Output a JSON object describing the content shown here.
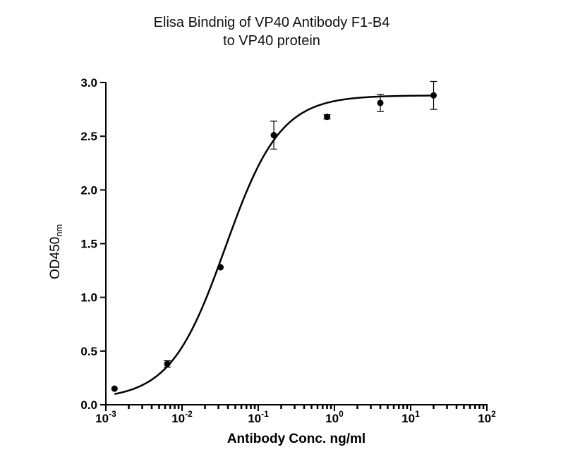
{
  "chart_data": {
    "type": "scatter",
    "title": "Elisa Bindnig of VP40 Antibody F1-B4",
    "subtitle": "to VP40 protein",
    "xlabel": "Antibody Conc. ng/ml",
    "ylabel": {
      "main": "OD450",
      "sub": "nm"
    },
    "x_scale": "log",
    "xlim": [
      0.001,
      100
    ],
    "ylim": [
      0,
      3.0
    ],
    "x_ticks": [
      {
        "value": 0.001,
        "base": "10",
        "exp": "-3"
      },
      {
        "value": 0.01,
        "base": "10",
        "exp": "-2"
      },
      {
        "value": 0.1,
        "base": "10",
        "exp": "-1"
      },
      {
        "value": 1,
        "base": "10",
        "exp": "0"
      },
      {
        "value": 10,
        "base": "10",
        "exp": "1"
      },
      {
        "value": 100,
        "base": "10",
        "exp": "2"
      }
    ],
    "y_ticks": [
      "0.0",
      "0.5",
      "1.0",
      "1.5",
      "2.0",
      "2.5",
      "3.0"
    ],
    "grid": false,
    "series": [
      {
        "points": [
          {
            "x": 0.0013,
            "y": 0.15,
            "err": 0.0
          },
          {
            "x": 0.0064,
            "y": 0.38,
            "err": 0.03
          },
          {
            "x": 0.032,
            "y": 1.28,
            "err": 0.0
          },
          {
            "x": 0.16,
            "y": 2.51,
            "err": 0.13
          },
          {
            "x": 0.8,
            "y": 2.68,
            "err": 0.02
          },
          {
            "x": 4.0,
            "y": 2.81,
            "err": 0.08
          },
          {
            "x": 20.0,
            "y": 2.88,
            "err": 0.13
          }
        ],
        "fit": {
          "model": "4PL",
          "bottom": 0.05,
          "top": 2.88,
          "ec50": 0.037,
          "hill": 1.2
        },
        "color": "#000000"
      }
    ]
  }
}
